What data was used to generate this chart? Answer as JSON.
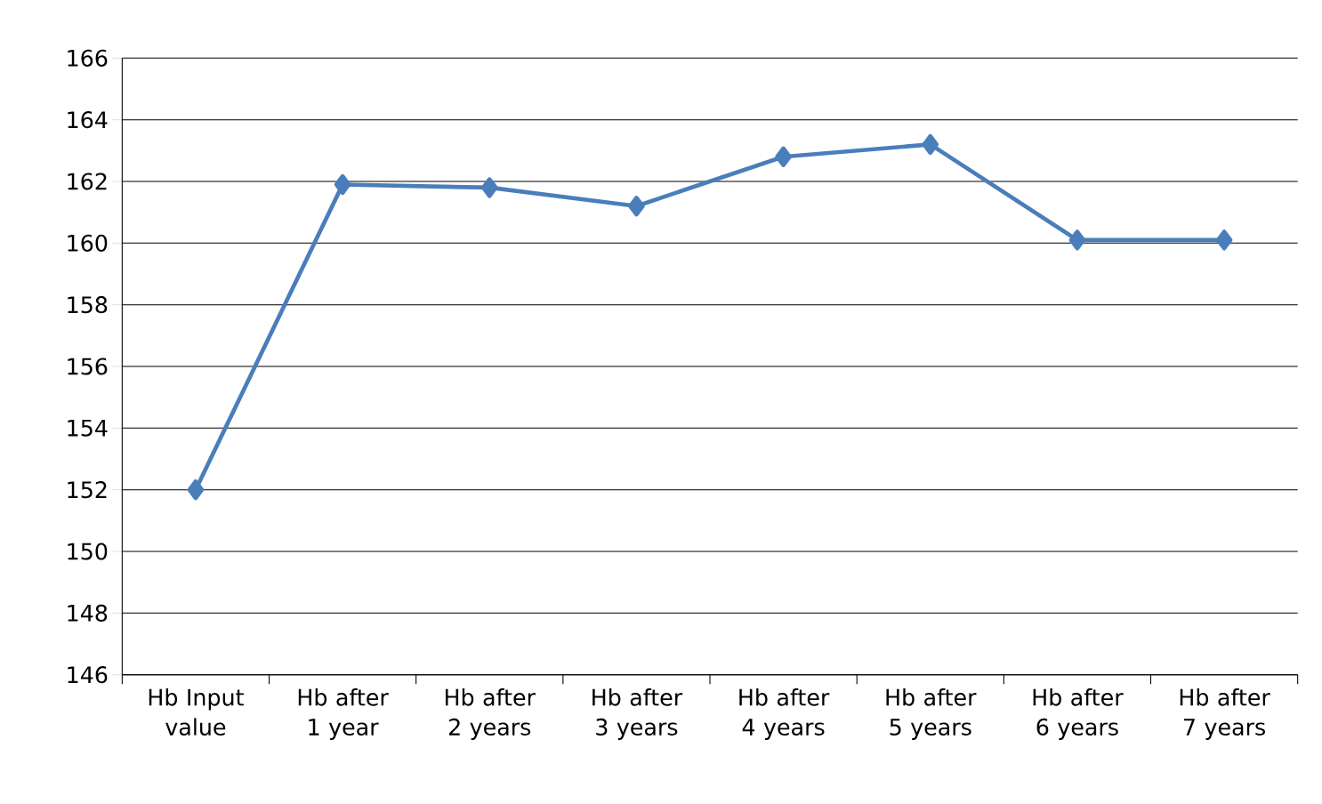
{
  "chart_data": {
    "type": "line",
    "categories": [
      "Hb Input value",
      "Hb after 1 year",
      "Hb after 2 years",
      "Hb after 3 years",
      "Hb after 4 years",
      "Hb after 5 years",
      "Hb after 6 years",
      "Hb after 7 years"
    ],
    "series": [
      {
        "color": "#4a7ebb",
        "values": [
          152.0,
          161.9,
          161.8,
          161.2,
          162.8,
          163.2,
          160.1,
          160.1
        ]
      }
    ],
    "ylim": [
      146,
      166
    ],
    "yticks": [
      146,
      148,
      150,
      152,
      154,
      156,
      158,
      160,
      162,
      164,
      166
    ],
    "grid": "y",
    "marker": "diamond",
    "line_style": "solid"
  }
}
